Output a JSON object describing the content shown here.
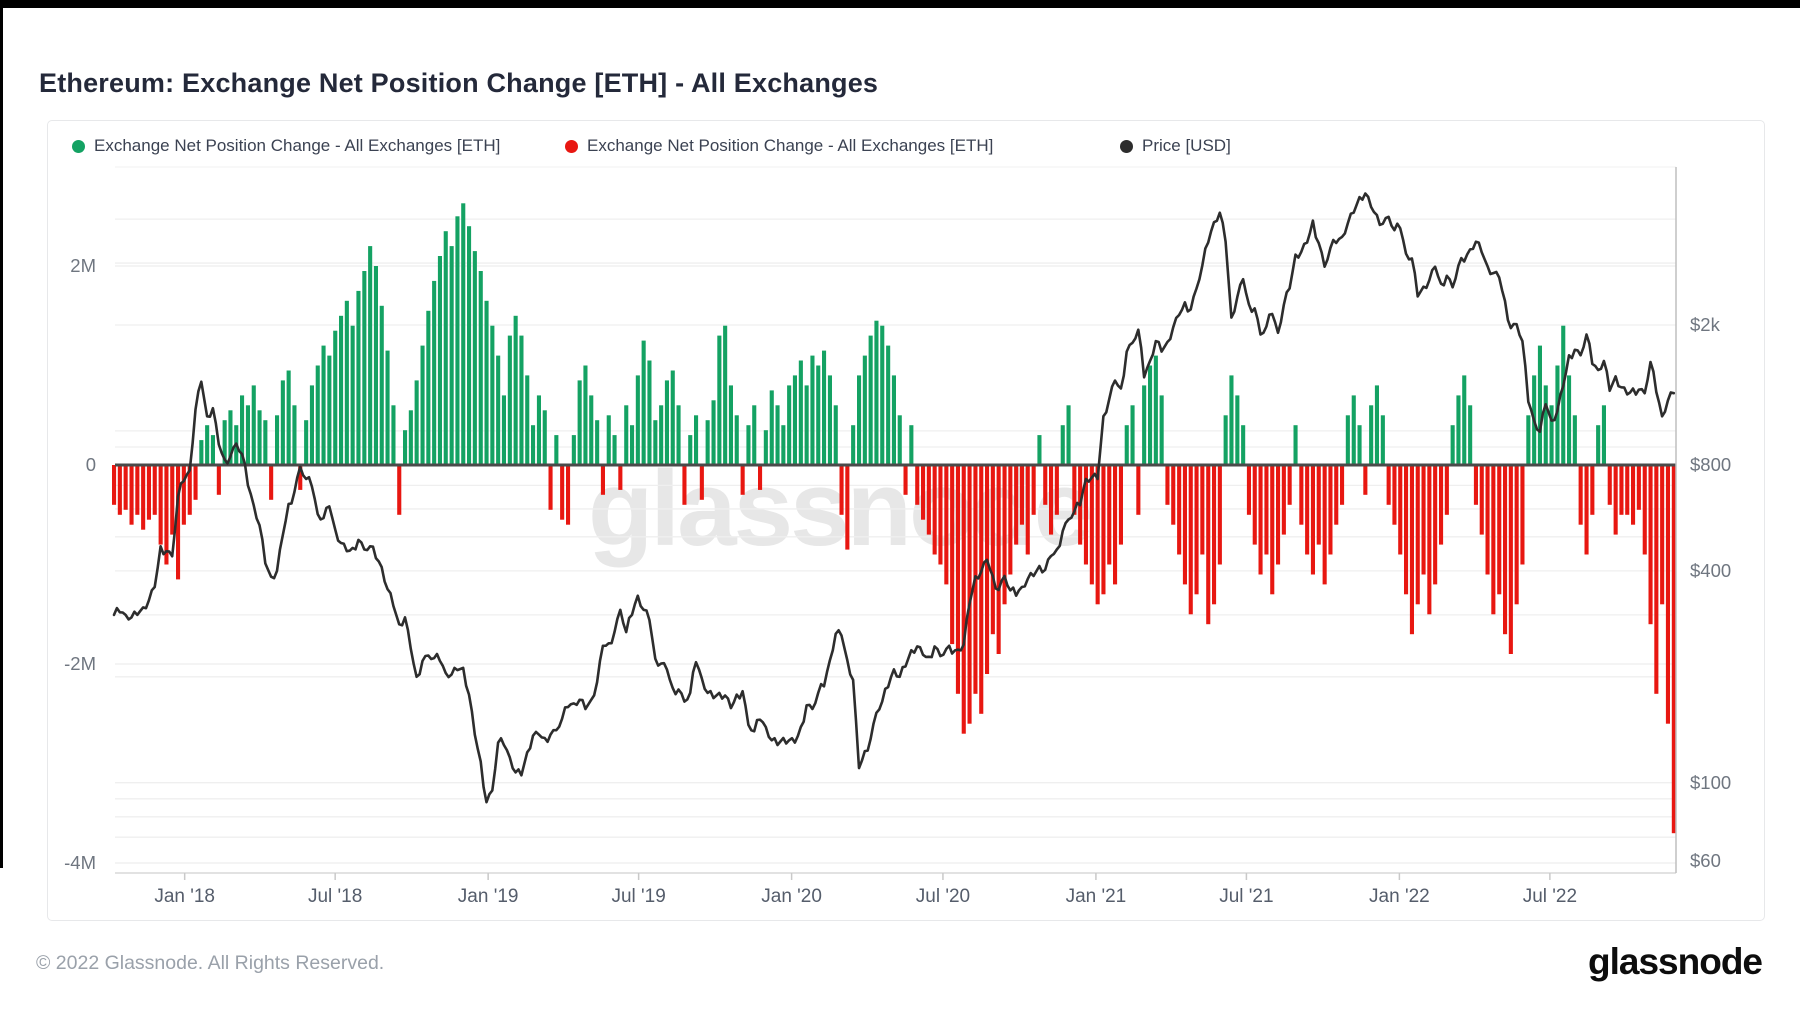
{
  "page": {
    "title": "Ethereum: Exchange Net Position Change [ETH] - All Exchanges",
    "footer_copyright": "© 2022 Glassnode. All Rights Reserved.",
    "brand_logo": "glassnode",
    "watermark": "glassnode"
  },
  "legend": [
    {
      "label": "Exchange Net Position Change - All Exchanges [ETH]",
      "color": "#14a263",
      "marker": "dot"
    },
    {
      "label": "Exchange Net Position Change - All Exchanges [ETH]",
      "color": "#e81711",
      "marker": "dot"
    },
    {
      "label": "Price [USD]",
      "color": "#2d2d2d",
      "marker": "dot"
    }
  ],
  "chart_data": {
    "type": "combo",
    "title": "Ethereum: Exchange Net Position Change [ETH] - All Exchanges",
    "start_date": "2017-10-08",
    "interval_days": 7,
    "x_ticks": [
      {
        "label": "Jan '18",
        "date": "2018-01-01"
      },
      {
        "label": "Jul '18",
        "date": "2018-07-01"
      },
      {
        "label": "Jan '19",
        "date": "2019-01-01"
      },
      {
        "label": "Jul '19",
        "date": "2019-07-01"
      },
      {
        "label": "Jan '20",
        "date": "2020-01-01"
      },
      {
        "label": "Jul '20",
        "date": "2020-07-01"
      },
      {
        "label": "Jan '21",
        "date": "2021-01-01"
      },
      {
        "label": "Jul '21",
        "date": "2021-07-01"
      },
      {
        "label": "Jan '22",
        "date": "2022-01-01"
      },
      {
        "label": "Jul '22",
        "date": "2022-07-01"
      }
    ],
    "left_axis": {
      "title": "Exchange Net Position Change [ETH]",
      "scale": "linear",
      "ticks": [
        {
          "label": "2M",
          "value": 2
        },
        {
          "label": "0",
          "value": 0
        },
        {
          "label": "-2M",
          "value": -2
        },
        {
          "label": "-4M",
          "value": -4
        }
      ],
      "range_m_eth": [
        -4.2,
        3.0
      ]
    },
    "right_axis": {
      "title": "Price [USD]",
      "scale": "log",
      "ticks": [
        {
          "label": "$2k",
          "value": 2000
        },
        {
          "label": "$800",
          "value": 800
        },
        {
          "label": "$400",
          "value": 400
        },
        {
          "label": "$100",
          "value": 100
        },
        {
          "label": "$60",
          "value": 60
        }
      ],
      "gridline_values_usd": [
        70,
        80,
        90,
        100,
        200,
        300,
        400,
        500,
        600,
        700,
        900,
        1000,
        2000,
        3000,
        4000
      ]
    },
    "series": [
      {
        "name": "Exchange Net Position Change - All Exchanges [ETH]",
        "type": "bar",
        "axis": "left",
        "unit": "million ETH",
        "positive_color": "#14a263",
        "negative_color": "#e81711",
        "values_m_eth": [
          -0.4,
          -0.5,
          -0.45,
          -0.6,
          -0.5,
          -0.65,
          -0.55,
          -0.5,
          -0.8,
          -1.0,
          -0.7,
          -1.15,
          -0.6,
          -0.5,
          -0.35,
          0.25,
          0.4,
          0.3,
          -0.3,
          0.45,
          0.55,
          0.4,
          0.7,
          0.6,
          0.8,
          0.55,
          0.45,
          -0.35,
          0.5,
          0.85,
          0.95,
          0.6,
          -0.25,
          0.45,
          0.8,
          1.0,
          1.2,
          1.1,
          1.35,
          1.5,
          1.65,
          1.4,
          1.75,
          1.95,
          2.2,
          2.0,
          1.6,
          1.15,
          0.6,
          -0.5,
          0.35,
          0.55,
          0.85,
          1.2,
          1.55,
          1.85,
          2.1,
          2.35,
          2.2,
          2.5,
          2.63,
          2.4,
          2.15,
          1.95,
          1.65,
          1.4,
          1.1,
          0.7,
          1.3,
          1.5,
          1.3,
          0.9,
          0.4,
          0.7,
          0.55,
          -0.45,
          0.3,
          -0.55,
          -0.6,
          0.3,
          0.85,
          1.0,
          0.7,
          0.45,
          -0.3,
          0.5,
          0.3,
          -0.25,
          0.6,
          0.4,
          0.9,
          1.25,
          1.05,
          0.45,
          0.6,
          0.85,
          0.95,
          0.6,
          -0.4,
          0.3,
          0.5,
          -0.35,
          0.45,
          0.65,
          1.3,
          1.4,
          0.8,
          0.5,
          -0.3,
          0.4,
          0.6,
          -0.25,
          0.35,
          0.75,
          0.6,
          0.4,
          0.8,
          0.9,
          1.05,
          0.8,
          1.1,
          1.0,
          1.15,
          0.9,
          0.6,
          -0.5,
          -0.85,
          0.4,
          0.9,
          1.1,
          1.3,
          1.45,
          1.4,
          1.2,
          0.9,
          0.5,
          -0.3,
          0.4,
          -0.4,
          -0.55,
          -0.7,
          -0.9,
          -1.0,
          -1.2,
          -1.8,
          -2.3,
          -2.7,
          -2.6,
          -2.3,
          -2.5,
          -2.1,
          -1.7,
          -1.9,
          -1.4,
          -1.1,
          -0.8,
          -0.6,
          -0.9,
          -0.5,
          0.3,
          -0.4,
          -0.7,
          -0.5,
          0.4,
          0.6,
          -0.5,
          -0.8,
          -1.0,
          -1.2,
          -1.4,
          -1.3,
          -1.0,
          -1.2,
          -0.8,
          0.4,
          0.6,
          -0.5,
          0.8,
          1.0,
          1.1,
          0.7,
          -0.4,
          -0.6,
          -0.9,
          -1.2,
          -1.5,
          -1.3,
          -0.9,
          -1.6,
          -1.4,
          -1.0,
          0.5,
          0.9,
          0.7,
          0.4,
          -0.5,
          -0.8,
          -1.1,
          -0.9,
          -1.3,
          -1.0,
          -0.7,
          -0.4,
          0.4,
          -0.6,
          -0.9,
          -1.1,
          -0.8,
          -1.2,
          -0.9,
          -0.6,
          -0.4,
          0.5,
          0.7,
          0.4,
          -0.3,
          0.6,
          0.8,
          0.5,
          -0.4,
          -0.6,
          -0.9,
          -1.3,
          -1.7,
          -1.4,
          -1.1,
          -1.5,
          -1.2,
          -0.8,
          -0.5,
          0.4,
          0.7,
          0.9,
          0.6,
          -0.4,
          -0.7,
          -1.1,
          -1.5,
          -1.3,
          -1.7,
          -1.9,
          -1.4,
          -1.0,
          0.5,
          0.9,
          1.2,
          0.8,
          0.6,
          1.0,
          1.4,
          0.9,
          0.5,
          -0.6,
          -0.9,
          -0.5,
          0.4,
          0.6,
          -0.4,
          -0.7,
          -0.5,
          -0.5,
          -0.6,
          -0.45,
          -0.9,
          -1.6,
          -2.3,
          -1.4,
          -2.6,
          -3.7
        ]
      },
      {
        "name": "Price [USD]",
        "type": "line",
        "axis": "right",
        "unit": "USD",
        "color": "#2d2d2d",
        "values_usd": [
          300,
          305,
          300,
          295,
          300,
          315,
          330,
          360,
          470,
          455,
          440,
          650,
          720,
          772,
          1150,
          1380,
          1100,
          1160,
          915,
          830,
          845,
          920,
          860,
          700,
          615,
          540,
          420,
          385,
          400,
          505,
          620,
          670,
          790,
          730,
          695,
          580,
          565,
          610,
          525,
          480,
          455,
          465,
          490,
          460,
          470,
          435,
          410,
          355,
          318,
          282,
          295,
          240,
          200,
          222,
          230,
          226,
          222,
          205,
          203,
          209,
          212,
          178,
          137,
          115,
          88,
          95,
          130,
          128,
          118,
          107,
          105,
          122,
          136,
          137,
          134,
          137,
          141,
          152,
          164,
          168,
          172,
          162,
          172,
          193,
          245,
          249,
          268,
          310,
          268,
          300,
          340,
          310,
          290,
          225,
          218,
          210,
          186,
          184,
          170,
          180,
          220,
          198,
          180,
          174,
          180,
          177,
          163,
          178,
          182,
          146,
          140,
          151,
          144,
          132,
          128,
          134,
          132,
          130,
          144,
          166,
          162,
          180,
          188,
          223,
          265,
          262,
          223,
          196,
          110,
          123,
          133,
          158,
          170,
          187,
          210,
          200,
          214,
          238,
          244,
          231,
          228,
          244,
          229,
          240,
          233,
          239,
          247,
          322,
          386,
          398,
          430,
          387,
          353,
          387,
          352,
          340,
          360,
          379,
          387,
          413,
          403,
          441,
          460,
          519,
          560,
          590,
          615,
          730,
          737,
          730,
          1100,
          1230,
          1390,
          1320,
          1680,
          1780,
          1940,
          1420,
          1580,
          1800,
          1680,
          1790,
          1970,
          2135,
          2320,
          2215,
          2540,
          2950,
          3430,
          3920,
          4170,
          3450,
          2100,
          2400,
          2700,
          2290,
          2230,
          1880,
          1980,
          2150,
          1900,
          2280,
          2540,
          3170,
          3230,
          3430,
          3960,
          3420,
          2930,
          3310,
          3420,
          3560,
          3890,
          4170,
          4620,
          4730,
          4330,
          4110,
          3880,
          4060,
          3720,
          3770,
          3190,
          3090,
          2410,
          2570,
          2680,
          2930,
          2620,
          2760,
          2560,
          2950,
          3030,
          3280,
          3450,
          3220,
          2940,
          2810,
          2730,
          2340,
          1960,
          2010,
          1800,
          1210,
          1070,
          995,
          1190,
          1070,
          1140,
          1340,
          1640,
          1700,
          1640,
          1880,
          1550,
          1490,
          1580,
          1300,
          1430,
          1330,
          1270,
          1320,
          1310,
          1280,
          1570,
          1290,
          1100,
          1220,
          1280
        ]
      }
    ]
  }
}
